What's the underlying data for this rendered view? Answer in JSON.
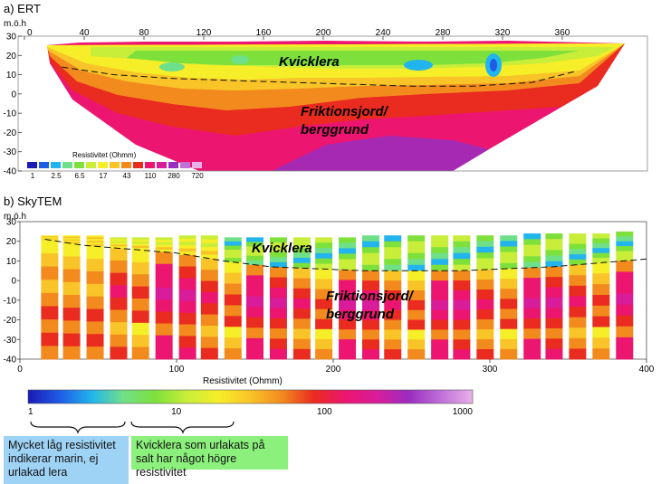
{
  "ert": {
    "panel_title": "a) ERT",
    "y_unit": "m.ö.h",
    "x_ticks": [
      0,
      40,
      80,
      120,
      160,
      200,
      240,
      280,
      320,
      360
    ],
    "y_ticks": [
      30,
      20,
      10,
      0,
      -10,
      -20,
      -30,
      -40
    ],
    "label_clay": "Kvicklera",
    "label_ground_1": "Friktionsjord/",
    "label_ground_2": "berggrund",
    "legend_title": "Resistivitet (Ohmm)",
    "legend_values": [
      "1",
      "2.5",
      "6.5",
      "17",
      "43",
      "110",
      "280",
      "720"
    ]
  },
  "skytem": {
    "panel_title": "b) SkyTEM",
    "y_unit": "m.ö.h",
    "x_ticks": [
      0,
      100,
      200,
      300,
      400
    ],
    "y_ticks": [
      30,
      20,
      10,
      0,
      -10,
      -20,
      -30,
      -40
    ],
    "x_label": "Resistivitet (Ohmm)",
    "label_clay": "Kvicklera",
    "label_ground_1": "Friktionsjord/",
    "label_ground_2": "berggrund"
  },
  "colorbar": {
    "ticks": [
      "1",
      "10",
      "100",
      "1000"
    ],
    "colors": [
      "#1a1ab4",
      "#1e5be6",
      "#22b4ec",
      "#6fe08a",
      "#7ee03a",
      "#c8ee3a",
      "#f6ee28",
      "#f8c428",
      "#f28a1e",
      "#ea2b20",
      "#ec1670",
      "#d81c9a",
      "#9a2dc0",
      "#c070d8",
      "#eab0ea"
    ]
  },
  "notes": {
    "note_blue": "Mycket låg resistivitet indikerar marin, ej urlakad lera",
    "note_blue_color": "#9fd3f5",
    "note_green": "Kvicklera som urlakats på salt har något högre resistivitet",
    "note_green_color": "#8cf07c"
  },
  "chart_data": [
    {
      "type": "heatmap",
      "title": "a) ERT",
      "ylabel": "m.ö.h",
      "xlim": [
        0,
        400
      ],
      "ylim": [
        -40,
        30
      ],
      "legend_title": "Resistivitet (Ohmm)",
      "legend_values": [
        1,
        2.5,
        6.5,
        17,
        43,
        110,
        280,
        720
      ],
      "annotations": [
        "Kvicklera",
        "Friktionsjord/ berggrund"
      ],
      "surface_outline_x": [
        14,
        40,
        80,
        120,
        160,
        200,
        240,
        280,
        320,
        360,
        374,
        360,
        320,
        280,
        240,
        200,
        160,
        120,
        80,
        40,
        14
      ],
      "surface_outline_y": [
        22,
        22,
        24,
        23,
        24,
        25,
        24,
        25,
        24,
        24,
        22,
        8,
        -8,
        -22,
        -40,
        -40,
        -40,
        -40,
        -40,
        -20,
        5
      ],
      "clay_boundary_x": [
        25,
        60,
        100,
        140,
        180,
        220,
        260,
        300,
        340,
        370
      ],
      "clay_boundary_y": [
        14,
        10,
        8,
        7,
        6,
        5,
        4,
        4,
        6,
        12
      ]
    },
    {
      "type": "heatmap",
      "title": "b) SkyTEM",
      "ylabel": "m.ö.h",
      "xlabel": "Resistivitet (Ohmm)",
      "xlim": [
        0,
        400
      ],
      "ylim": [
        -40,
        30
      ],
      "colorbar_range": [
        1,
        1000
      ],
      "colorbar_ticks": [
        1,
        10,
        100,
        1000
      ],
      "annotations": [
        "Kvicklera",
        "Friktionsjord/ berggrund"
      ],
      "sounding_x": [
        19,
        33,
        48,
        63,
        77,
        92,
        107,
        121,
        136,
        150,
        165,
        180,
        194,
        209,
        224,
        238,
        253,
        268,
        282,
        297,
        312,
        327,
        341,
        356,
        371,
        386
      ],
      "sounding_top_y": [
        23,
        23,
        23,
        22,
        22,
        22,
        23,
        23,
        22,
        22,
        22,
        22,
        22,
        22,
        23,
        23,
        23,
        23,
        23,
        23,
        23,
        24,
        24,
        24,
        24,
        25
      ],
      "clay_boundary_x": [
        16,
        40,
        70,
        100,
        130,
        160,
        190,
        220,
        250,
        280,
        310,
        340,
        370,
        400
      ],
      "clay_boundary_y": [
        21,
        18,
        16,
        14,
        10,
        7,
        6,
        5,
        5,
        5,
        6,
        7,
        9,
        11
      ]
    }
  ]
}
